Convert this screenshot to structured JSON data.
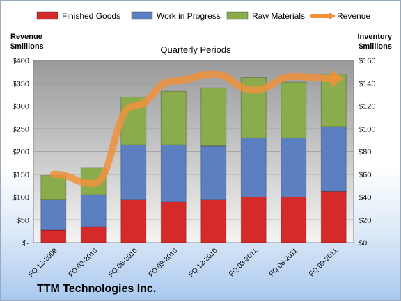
{
  "company": "TTM Technologies Inc.",
  "chart_data": {
    "type": "bar",
    "stacked": true,
    "title": "Quarterly Periods",
    "left_axis_title": [
      "Revenue",
      "$millions"
    ],
    "right_axis_title": [
      "Inventory",
      "$millions"
    ],
    "categories": [
      "FQ 12-2009",
      "FQ 03-2010",
      "FQ 06-2010",
      "FQ 09-2010",
      "FQ 12-2010",
      "FQ 03-2011",
      "FQ 06-2011",
      "FQ 09-2011"
    ],
    "left_ticks": [
      "$-",
      "$50",
      "$100",
      "$150",
      "$200",
      "$250",
      "$300",
      "$350",
      "$400"
    ],
    "right_ticks": [
      "$0",
      "$20",
      "$40",
      "$60",
      "$80",
      "$100",
      "$120",
      "$140",
      "$160"
    ],
    "left_range": [
      0,
      400
    ],
    "right_range": [
      0,
      160
    ],
    "series": [
      {
        "name": "Finished Goods",
        "axis": "right",
        "color": "#d52a2a",
        "values": [
          11,
          14,
          38,
          36,
          38,
          40,
          40,
          45
        ]
      },
      {
        "name": "Work in Progress",
        "axis": "right",
        "color": "#5b7fc0",
        "values": [
          27,
          28,
          48,
          50,
          47,
          52,
          52,
          57
        ]
      },
      {
        "name": "Raw Materials",
        "axis": "right",
        "color": "#8bac4d",
        "values": [
          21,
          24,
          42,
          47,
          51,
          53,
          49,
          46
        ]
      },
      {
        "name": "Revenue",
        "axis": "left",
        "type": "line",
        "color": "#f0903c",
        "values": [
          150,
          130,
          300,
          355,
          370,
          335,
          365,
          360
        ]
      }
    ],
    "legend": "top",
    "grid": true
  }
}
